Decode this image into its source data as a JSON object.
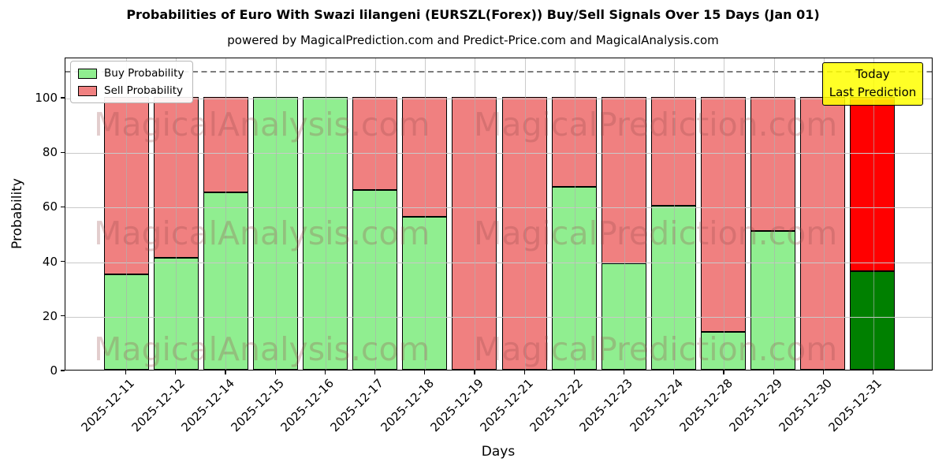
{
  "title": "Probabilities of Euro With Swazi lilangeni (EURSZL(Forex)) Buy/Sell Signals Over 15 Days (Jan 01)",
  "subtitle": "powered by MagicalPrediction.com and Predict-Price.com and MagicalAnalysis.com",
  "watermarks": {
    "left": "MagicalAnalysis.com",
    "right": "MagicalPrediction.com"
  },
  "legend": [
    {
      "label": "Buy Probability",
      "color": "#90EE90"
    },
    {
      "label": "Sell Probability",
      "color": "#F08080"
    }
  ],
  "annotation": {
    "line1": "Today",
    "line2": "Last Prediction",
    "bg": "#FFFF00"
  },
  "chart_data": {
    "type": "bar",
    "stacked": true,
    "title": "Probabilities of Euro With Swazi lilangeni (EURSZL(Forex)) Buy/Sell Signals Over 15 Days (Jan 01)",
    "xlabel": "Days",
    "ylabel": "Probability",
    "categories": [
      "2025-12-11",
      "2025-12-12",
      "2025-12-14",
      "2025-12-15",
      "2025-12-16",
      "2025-12-17",
      "2025-12-18",
      "2025-12-19",
      "2025-12-21",
      "2025-12-22",
      "2025-12-23",
      "2025-12-24",
      "2025-12-28",
      "2025-12-29",
      "2025-12-30",
      "2025-12-31"
    ],
    "series": [
      {
        "name": "Buy Probability",
        "color": "#90EE90",
        "values": [
          35,
          41,
          65,
          100,
          100,
          66,
          56,
          0,
          0,
          67,
          39,
          60,
          14,
          51,
          0,
          36
        ]
      },
      {
        "name": "Sell Probability",
        "color": "#F08080",
        "values": [
          65,
          59,
          35,
          0,
          0,
          34,
          44,
          100,
          100,
          33,
          61,
          40,
          86,
          49,
          100,
          64
        ]
      }
    ],
    "today_category": "2025-12-31",
    "today_colors": {
      "buy": "#008000",
      "sell": "#FF0000"
    },
    "yticks": [
      0,
      20,
      40,
      60,
      80,
      100
    ],
    "ylim": [
      0,
      115
    ],
    "dashed_line_y": 110,
    "grid": true,
    "legend_position": "upper left"
  }
}
